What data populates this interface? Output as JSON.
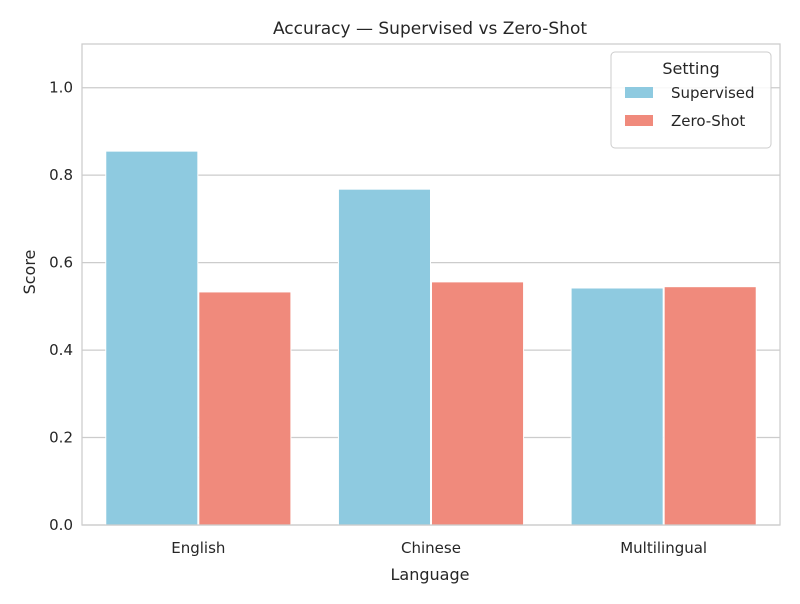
{
  "chart_data": {
    "type": "bar",
    "title": "Accuracy — Supervised vs Zero-Shot",
    "xlabel": "Language",
    "ylabel": "Score",
    "categories": [
      "English",
      "Chinese",
      "Multilingual"
    ],
    "series": [
      {
        "name": "Supervised",
        "color": "#8ecae0",
        "values": [
          0.855,
          0.768,
          0.542
        ]
      },
      {
        "name": "Zero-Shot",
        "color": "#f08a7c",
        "values": [
          0.533,
          0.556,
          0.545
        ]
      }
    ],
    "ylim": [
      0,
      1.1
    ],
    "yticks": [
      0.0,
      0.2,
      0.4,
      0.6,
      0.8,
      1.0
    ],
    "ytick_labels": [
      "0.0",
      "0.2",
      "0.4",
      "0.6",
      "0.8",
      "1.0"
    ],
    "grid": true,
    "legend": {
      "title": "Setting",
      "position": "top-right"
    }
  }
}
